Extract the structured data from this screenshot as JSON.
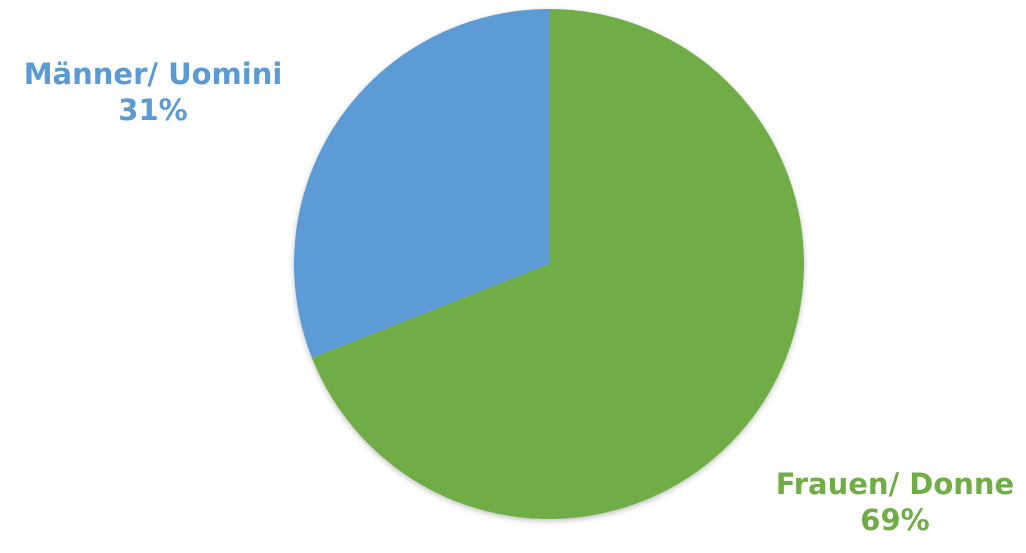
{
  "chart_data": {
    "type": "pie",
    "title": "",
    "slices": [
      {
        "label": "Männer/ Uomini",
        "value": 31,
        "value_label": "31%",
        "color": "#5b9bd5"
      },
      {
        "label": "Frauen/ Donne",
        "value": 69,
        "value_label": "69%",
        "color": "#70ad47"
      }
    ],
    "start_angle_deg": 0,
    "direction": "counterclockwise-for-first-slice",
    "legend": "none (data labels outside slices)"
  }
}
